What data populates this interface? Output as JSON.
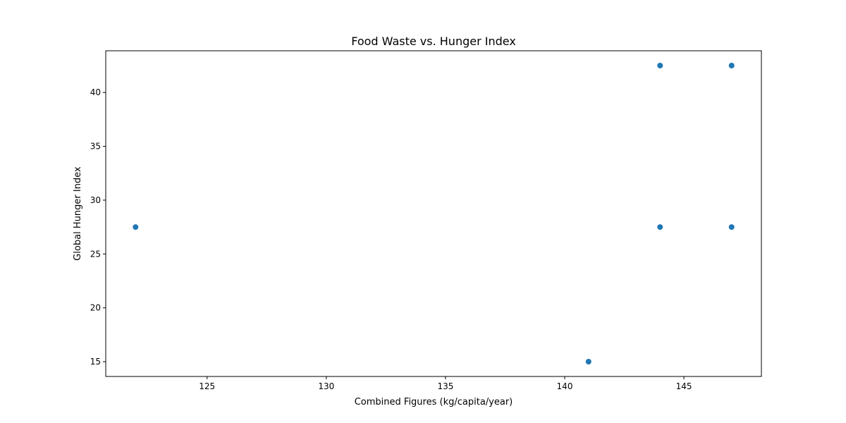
{
  "chart_data": {
    "type": "scatter",
    "title": "Food Waste vs. Hunger Index",
    "xlabel": "Combined Figures (kg/capita/year)",
    "ylabel": "Global Hunger Index",
    "xlim": [
      120.75,
      148.25
    ],
    "ylim": [
      13.625,
      43.875
    ],
    "x_ticks": [
      125,
      130,
      135,
      140,
      145
    ],
    "y_ticks": [
      15,
      20,
      25,
      30,
      35,
      40
    ],
    "grid": false,
    "color": "#1f77b4",
    "points": [
      {
        "x": 122,
        "y": 27.5
      },
      {
        "x": 141,
        "y": 15.0
      },
      {
        "x": 144,
        "y": 42.5
      },
      {
        "x": 144,
        "y": 27.5
      },
      {
        "x": 147,
        "y": 42.5
      },
      {
        "x": 147,
        "y": 27.5
      }
    ]
  }
}
